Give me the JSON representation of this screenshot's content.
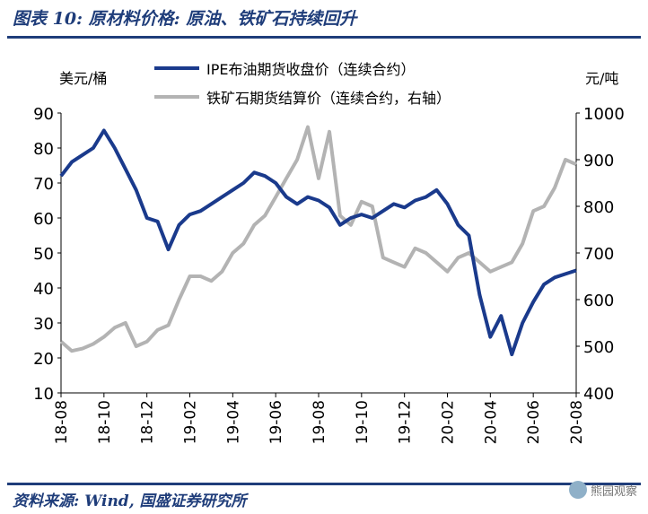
{
  "header": {
    "title": "图表 10: 原材料价格: 原油、铁矿石持续回升"
  },
  "footer": {
    "source": "资料来源: Wind, 国盛证券研究所",
    "watermark": "熊园观察"
  },
  "chart_data": {
    "type": "line",
    "left_unit": "美元/桶",
    "right_unit": "元/吨",
    "xlabels": [
      "18-08",
      "18-10",
      "18-12",
      "19-02",
      "19-04",
      "19-06",
      "19-08",
      "19-10",
      "19-12",
      "20-02",
      "20-04",
      "20-06",
      "20-08"
    ],
    "y_left": {
      "min": 10,
      "max": 90,
      "ticks": [
        90,
        80,
        70,
        60,
        50,
        40,
        30,
        20,
        10
      ]
    },
    "y_right": {
      "min": 400,
      "max": 1000,
      "ticks": [
        1000,
        900,
        800,
        700,
        600,
        500,
        400
      ]
    },
    "legend_placement": "top",
    "series": [
      {
        "name": "IPE布油期货收盘价（连续合约）",
        "axis": "left",
        "color": "#1a3a8c",
        "x": [
          0,
          0.25,
          0.5,
          0.75,
          1,
          1.25,
          1.5,
          1.75,
          2,
          2.25,
          2.5,
          2.75,
          3,
          3.25,
          3.5,
          3.75,
          4,
          4.25,
          4.5,
          4.75,
          5,
          5.25,
          5.5,
          5.75,
          6,
          6.25,
          6.5,
          6.75,
          7,
          7.25,
          7.5,
          7.75,
          8,
          8.25,
          8.5,
          8.75,
          9,
          9.25,
          9.5,
          9.75,
          10,
          10.25,
          10.5,
          10.75,
          11,
          11.25,
          11.5,
          11.75,
          12
        ],
        "values": [
          72,
          76,
          78,
          80,
          85,
          80,
          74,
          68,
          60,
          59,
          51,
          58,
          61,
          62,
          64,
          66,
          68,
          70,
          73,
          72,
          70,
          66,
          64,
          66,
          65,
          63,
          58,
          60,
          61,
          60,
          62,
          64,
          63,
          65,
          66,
          68,
          64,
          58,
          55,
          38,
          26,
          32,
          21,
          30,
          36,
          41,
          43,
          44,
          45
        ]
      },
      {
        "name": "铁矿石期货结算价（连续合约，右轴）",
        "axis": "right",
        "color": "#b3b3b3",
        "x": [
          0,
          0.25,
          0.5,
          0.75,
          1,
          1.25,
          1.5,
          1.75,
          2,
          2.25,
          2.5,
          2.75,
          3,
          3.25,
          3.5,
          3.75,
          4,
          4.25,
          4.5,
          4.75,
          5,
          5.25,
          5.5,
          5.75,
          6,
          6.25,
          6.5,
          6.75,
          7,
          7.25,
          7.5,
          7.75,
          8,
          8.25,
          8.5,
          8.75,
          9,
          9.25,
          9.5,
          9.75,
          10,
          10.25,
          10.5,
          10.75,
          11,
          11.25,
          11.5,
          11.75,
          12
        ],
        "values": [
          510,
          490,
          495,
          505,
          520,
          540,
          550,
          500,
          510,
          535,
          545,
          600,
          650,
          650,
          640,
          660,
          700,
          720,
          760,
          780,
          820,
          860,
          900,
          970,
          860,
          960,
          780,
          760,
          810,
          800,
          690,
          680,
          670,
          710,
          700,
          680,
          660,
          690,
          700,
          680,
          660,
          670,
          680,
          720,
          790,
          800,
          840,
          900,
          890
        ]
      }
    ]
  }
}
